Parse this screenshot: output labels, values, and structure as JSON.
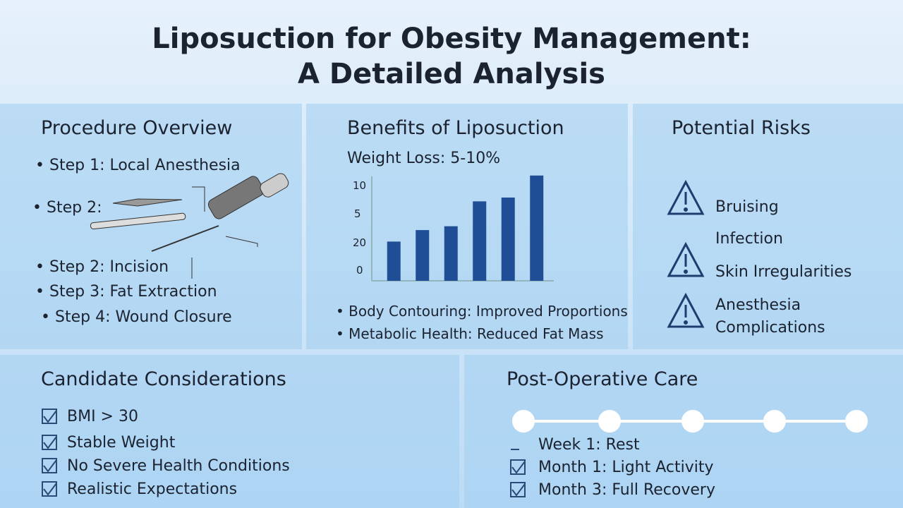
{
  "header": {
    "title_lines": [
      "Liposuction for Obesity Management:",
      "A Detailed Analysis"
    ]
  },
  "procedure": {
    "heading": "Procedure Overview",
    "steps": [
      "Step 1: Local Anesthesia",
      "Step 2:",
      "Step 2: Incision",
      "Step 3: Fat Extraction",
      "Step 4: Wound Closure"
    ]
  },
  "benefits": {
    "heading": "Benefits of Liposuction",
    "bullets": [
      "Body Contouring: Improved Proportions",
      "Metabolic Health: Reduced Fat Mass"
    ]
  },
  "chart_data": {
    "type": "bar",
    "title": "Weight Loss: 5-10%",
    "categories": [
      null,
      null,
      null,
      null,
      null,
      null
    ],
    "values": [
      4.1,
      5.3,
      5.7,
      8.3,
      8.7,
      11
    ],
    "color": "#1f4e96",
    "ylim": [
      0,
      11.5
    ],
    "y_axis_texts": [
      "10",
      "5",
      "20",
      "0"
    ]
  },
  "risks": {
    "heading": "Potential Risks",
    "items": [
      "Bruising",
      "Infection",
      "Skin Irregularities",
      "Anesthesia Complications"
    ]
  },
  "candidate": {
    "heading": "Candidate Considerations",
    "items": [
      "BMI > 30",
      "Stable Weight",
      "No Severe Health Conditions",
      "Realistic Expectations"
    ]
  },
  "postop": {
    "heading": "Post-Operative Care",
    "items": [
      "Week 1: Rest",
      "Month 1: Light Activity",
      "Month 3: Full Recovery"
    ]
  }
}
